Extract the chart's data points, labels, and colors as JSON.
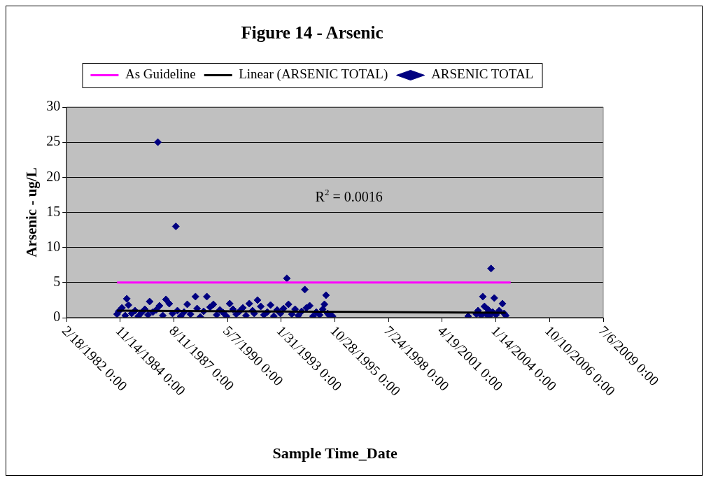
{
  "chart_data": {
    "type": "scatter",
    "title": "Figure 14 - Arsenic",
    "xlabel": "Sample Time_Date",
    "ylabel": "Arsenic - ug/L",
    "annotations": [
      "R$^{2}$ = 0.0016"
    ],
    "xlim": [
      "1982-02-18",
      "2009-07-06"
    ],
    "xticks": [
      {
        "value": "1982-02-18",
        "label": "2/18/1982 0:00"
      },
      {
        "value": "1984-11-14",
        "label": "11/14/1984 0:00"
      },
      {
        "value": "1987-08-11",
        "label": "8/11/1987 0:00"
      },
      {
        "value": "1990-05-07",
        "label": "5/7/1990 0:00"
      },
      {
        "value": "1993-01-31",
        "label": "1/31/1993 0:00"
      },
      {
        "value": "1995-10-28",
        "label": "10/28/1995 0:00"
      },
      {
        "value": "1998-07-24",
        "label": "7/24/1998 0:00"
      },
      {
        "value": "2001-04-19",
        "label": "4/19/2001 0:00"
      },
      {
        "value": "2004-01-14",
        "label": "1/14/2004 0:00"
      },
      {
        "value": "2006-10-10",
        "label": "10/10/2006 0:00"
      },
      {
        "value": "2009-07-06",
        "label": "7/6/2009 0:00"
      }
    ],
    "ylim": [
      0,
      30
    ],
    "yticks": [
      0,
      5,
      10,
      15,
      20,
      25,
      30
    ],
    "grid": "y",
    "legend": "top",
    "series": [
      {
        "name": "ARSENIC TOTAL",
        "marker": "diamond",
        "color": "#000080",
        "x": [
          "1984-09-15",
          "1984-10-15",
          "1984-12-15",
          "1985-02-15",
          "1985-03-15",
          "1985-04-15",
          "1985-06-15",
          "1985-08-15",
          "1985-10-15",
          "1985-12-15",
          "1986-02-15",
          "1986-04-15",
          "1986-05-15",
          "1986-07-15",
          "1986-09-15",
          "1986-10-15",
          "1986-11-15",
          "1987-01-15",
          "1987-03-15",
          "1987-05-15",
          "1987-07-15",
          "1987-09-15",
          "1987-10-15",
          "1987-12-15",
          "1988-02-15",
          "1988-04-15",
          "1988-06-15",
          "1988-09-15",
          "1988-10-15",
          "1988-12-15",
          "1989-02-15",
          "1989-04-15",
          "1989-06-15",
          "1989-08-15",
          "1989-10-15",
          "1989-12-15",
          "1990-02-15",
          "1990-04-15",
          "1990-06-15",
          "1990-08-15",
          "1990-10-15",
          "1990-12-15",
          "1991-02-15",
          "1991-04-15",
          "1991-06-15",
          "1991-08-15",
          "1991-09-15",
          "1991-11-15",
          "1992-01-15",
          "1992-03-15",
          "1992-05-15",
          "1992-07-15",
          "1992-09-15",
          "1992-11-15",
          "1993-01-15",
          "1993-03-15",
          "1993-05-15",
          "1993-06-15",
          "1993-08-15",
          "1993-10-15",
          "1993-12-15",
          "1994-02-15",
          "1994-04-15",
          "1994-05-15",
          "1994-07-15",
          "1994-09-15",
          "1994-11-15",
          "1995-01-15",
          "1995-03-15",
          "1995-04-15",
          "1995-05-15",
          "1995-06-15",
          "1995-07-15",
          "1995-08-15",
          "1995-09-15",
          "2002-08-15",
          "2003-01-15",
          "2003-02-15",
          "2003-04-15",
          "2003-05-15",
          "2003-06-15",
          "2003-07-15",
          "2003-08-15",
          "2003-09-15",
          "2003-10-15",
          "2003-11-15",
          "2003-12-15",
          "2004-01-15",
          "2004-03-15",
          "2004-05-15",
          "2004-06-15",
          "2004-07-15"
        ],
        "values": [
          0.5,
          0.9,
          1.4,
          0.3,
          2.7,
          1.8,
          0.6,
          1.0,
          0.2,
          0.7,
          1.2,
          0.4,
          2.3,
          0.8,
          1.1,
          25,
          1.7,
          0.3,
          2.6,
          2.0,
          0.6,
          13,
          1.0,
          0.2,
          0.8,
          1.9,
          0.5,
          3.0,
          1.3,
          0.1,
          0.9,
          3.0,
          1.5,
          1.9,
          0.4,
          1.1,
          0.7,
          0.2,
          2.0,
          1.2,
          0.5,
          0.9,
          1.4,
          0.3,
          2.0,
          1.0,
          0.6,
          2.5,
          1.6,
          0.4,
          0.8,
          1.8,
          0.2,
          1.1,
          0.6,
          1.3,
          5.6,
          1.9,
          0.5,
          1.2,
          0.3,
          0.9,
          4.0,
          1.4,
          1.7,
          0.2,
          0.8,
          0.4,
          1.2,
          1.9,
          3.2,
          0.6,
          0.3,
          0.4,
          0.2,
          0.2,
          0.5,
          1.0,
          0.3,
          3.0,
          1.6,
          0.5,
          1.2,
          0.2,
          7.0,
          0.8,
          2.8,
          0.4,
          1.0,
          2.0,
          0.6,
          0.3
        ]
      },
      {
        "name": "As Guideline",
        "type": "line",
        "color": "#ff00ff",
        "x": [
          "1984-09-15",
          "2004-10-15"
        ],
        "values": [
          5,
          5
        ]
      },
      {
        "name": "Linear (ARSENIC TOTAL)",
        "type": "line",
        "color": "#000000",
        "x": [
          "1984-09-15",
          "2004-07-15"
        ],
        "values": [
          1.0,
          0.7
        ]
      }
    ]
  }
}
